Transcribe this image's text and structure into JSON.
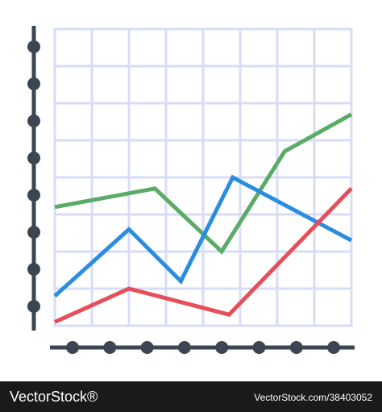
{
  "chart_data": {
    "type": "line",
    "xlim": [
      0,
      8
    ],
    "ylim": [
      0,
      8
    ],
    "grid": true,
    "series": [
      {
        "color": "#5aab66",
        "x": [
          0,
          2.7,
          4.5,
          6.2,
          8
        ],
        "values": [
          3.2,
          3.7,
          2.0,
          4.7,
          5.7
        ]
      },
      {
        "color": "#2b8de0",
        "x": [
          0,
          2.0,
          3.4,
          4.8,
          8
        ],
        "values": [
          0.8,
          2.6,
          1.2,
          4.0,
          2.3
        ]
      },
      {
        "color": "#e64f5a",
        "x": [
          0,
          2.0,
          4.7,
          8
        ],
        "values": [
          0.1,
          1.0,
          0.3,
          3.7
        ]
      }
    ]
  },
  "watermark": {
    "left": "VectorStock®",
    "right": "VectorStock.com/38403052"
  }
}
